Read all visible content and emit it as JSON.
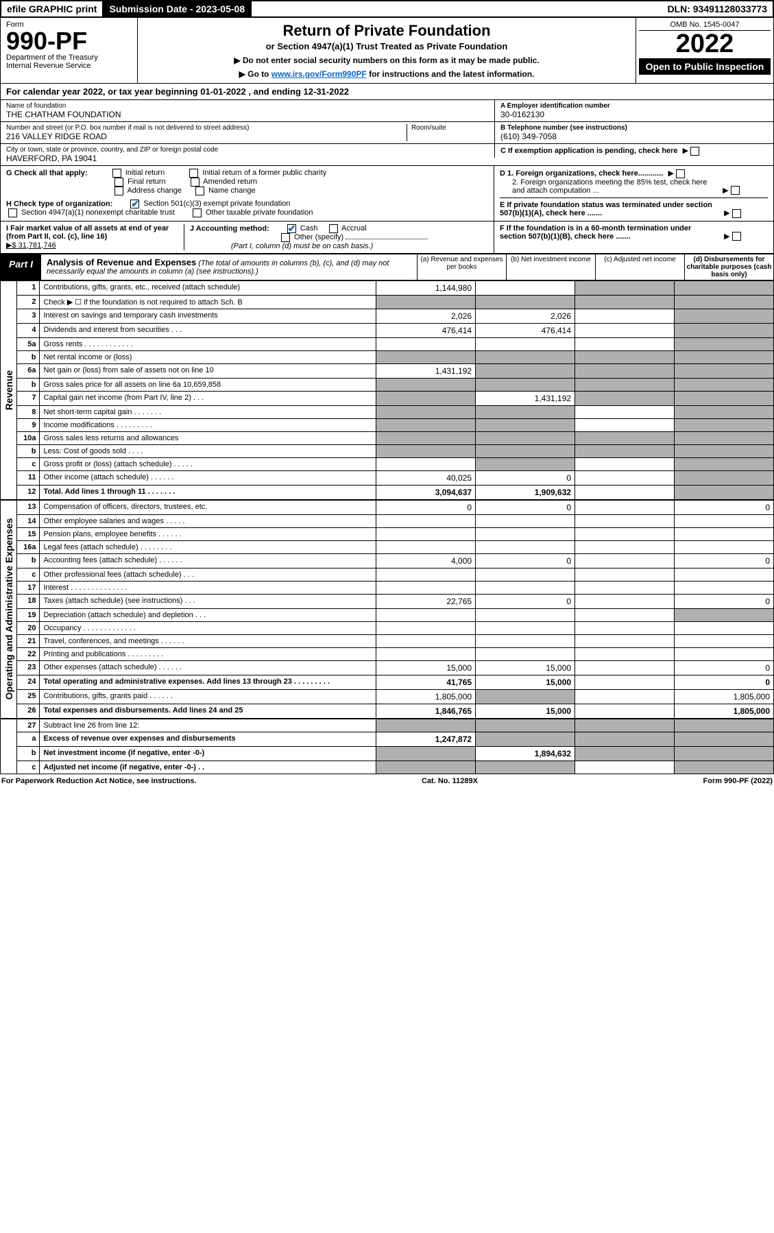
{
  "topbar": {
    "efile": "efile GRAPHIC print",
    "subdate": "Submission Date - 2023-05-08",
    "dln": "DLN: 93491128033773"
  },
  "header": {
    "form_word": "Form",
    "form_no": "990-PF",
    "dept": "Department of the Treasury",
    "irs": "Internal Revenue Service",
    "title": "Return of Private Foundation",
    "subtitle": "or Section 4947(a)(1) Trust Treated as Private Foundation",
    "note1": "▶ Do not enter social security numbers on this form as it may be made public.",
    "note2_pre": "▶ Go to ",
    "note2_link": "www.irs.gov/Form990PF",
    "note2_post": " for instructions and the latest information.",
    "omb": "OMB No. 1545-0047",
    "taxyear": "2022",
    "open": "Open to Public Inspection"
  },
  "calyear": {
    "pre": "For calendar year 2022, or tax year beginning ",
    "begin": "01-01-2022",
    "mid": " , and ending ",
    "end": "12-31-2022"
  },
  "info": {
    "name_lbl": "Name of foundation",
    "name": "THE CHATHAM FOUNDATION",
    "addr_lbl": "Number and street (or P.O. box number if mail is not delivered to street address)",
    "addr": "216 VALLEY RIDGE ROAD",
    "room_lbl": "Room/suite",
    "city_lbl": "City or town, state or province, country, and ZIP or foreign postal code",
    "city": "HAVERFORD, PA  19041",
    "ein_lbl": "A Employer identification number",
    "ein": "30-0162130",
    "tel_lbl": "B Telephone number (see instructions)",
    "tel": "(610) 349-7058",
    "c_lbl": "C If exemption application is pending, check here",
    "d1": "D 1. Foreign organizations, check here............",
    "d2": "2. Foreign organizations meeting the 85% test, check here and attach computation ...",
    "e_lbl": "E  If private foundation status was terminated under section 507(b)(1)(A), check here .......",
    "f_lbl": "F  If the foundation is in a 60-month termination under section 507(b)(1)(B), check here .......",
    "g_lbl": "G Check all that apply:",
    "g_opts": [
      "Initial return",
      "Initial return of a former public charity",
      "Final return",
      "Amended return",
      "Address change",
      "Name change"
    ],
    "h_lbl": "H Check type of organization:",
    "h_opt1": "Section 501(c)(3) exempt private foundation",
    "h_opt2": "Section 4947(a)(1) nonexempt charitable trust",
    "h_opt3": "Other taxable private foundation",
    "i_lbl": "I Fair market value of all assets at end of year (from Part II, col. (c), line 16)",
    "i_val": "▶$  31,781,746",
    "j_lbl": "J Accounting method:",
    "j_cash": "Cash",
    "j_accrual": "Accrual",
    "j_other": "Other (specify)",
    "j_note": "(Part I, column (d) must be on cash basis.)"
  },
  "part1": {
    "label": "Part I",
    "title": "Analysis of Revenue and Expenses",
    "desc": " (The total of amounts in columns (b), (c), and (d) may not necessarily equal the amounts in column (a) (see instructions).)",
    "cols": {
      "a": "(a)   Revenue and expenses per books",
      "b": "(b)  Net investment income",
      "c": "(c)  Adjusted net income",
      "d": "(d)  Disbursements for charitable purposes (cash basis only)"
    }
  },
  "side": {
    "rev": "Revenue",
    "exp": "Operating and Administrative Expenses"
  },
  "rows": [
    {
      "sec": "rev",
      "ln": "1",
      "desc": "Contributions, gifts, grants, etc., received (attach schedule)",
      "a": "1,144,980",
      "b": "",
      "c": "g",
      "d": "g"
    },
    {
      "sec": "rev",
      "ln": "2",
      "desc": "Check ▶ ☐ if the foundation is not required to attach Sch. B",
      "a": "g",
      "b": "g",
      "c": "g",
      "d": "g"
    },
    {
      "sec": "rev",
      "ln": "3",
      "desc": "Interest on savings and temporary cash investments",
      "a": "2,026",
      "b": "2,026",
      "c": "",
      "d": "g"
    },
    {
      "sec": "rev",
      "ln": "4",
      "desc": "Dividends and interest from securities  .  .  .",
      "a": "476,414",
      "b": "476,414",
      "c": "",
      "d": "g"
    },
    {
      "sec": "rev",
      "ln": "5a",
      "desc": "Gross rents  .  .  .  .  .  .  .  .  .  .  .  .",
      "a": "",
      "b": "",
      "c": "",
      "d": "g"
    },
    {
      "sec": "rev",
      "ln": "b",
      "desc": "Net rental income or (loss)  ",
      "a": "g",
      "b": "g",
      "c": "g",
      "d": "g"
    },
    {
      "sec": "rev",
      "ln": "6a",
      "desc": "Net gain or (loss) from sale of assets not on line 10",
      "a": "1,431,192",
      "b": "g",
      "c": "g",
      "d": "g"
    },
    {
      "sec": "rev",
      "ln": "b",
      "desc": "Gross sales price for all assets on line 6a         10,659,858",
      "a": "g",
      "b": "g",
      "c": "g",
      "d": "g"
    },
    {
      "sec": "rev",
      "ln": "7",
      "desc": "Capital gain net income (from Part IV, line 2)  .  .  .",
      "a": "g",
      "b": "1,431,192",
      "c": "g",
      "d": "g"
    },
    {
      "sec": "rev",
      "ln": "8",
      "desc": "Net short-term capital gain  .  .  .  .  .  .  .",
      "a": "g",
      "b": "g",
      "c": "",
      "d": "g"
    },
    {
      "sec": "rev",
      "ln": "9",
      "desc": "Income modifications .  .  .  .  .  .  .  .  .",
      "a": "g",
      "b": "g",
      "c": "",
      "d": "g"
    },
    {
      "sec": "rev",
      "ln": "10a",
      "desc": "Gross sales less returns and allowances",
      "a": "g",
      "b": "g",
      "c": "g",
      "d": "g"
    },
    {
      "sec": "rev",
      "ln": "b",
      "desc": "Less: Cost of goods sold  .  .  .  .",
      "a": "g",
      "b": "g",
      "c": "g",
      "d": "g"
    },
    {
      "sec": "rev",
      "ln": "c",
      "desc": "Gross profit or (loss) (attach schedule)  .  .  .  .  .",
      "a": "",
      "b": "g",
      "c": "",
      "d": "g"
    },
    {
      "sec": "rev",
      "ln": "11",
      "desc": "Other income (attach schedule)  .  .  .  .  .  .",
      "a": "40,025",
      "b": "0",
      "c": "",
      "d": "g"
    },
    {
      "sec": "rev",
      "ln": "12",
      "desc": "Total. Add lines 1 through 11  .  .  .  .  .  .  .",
      "a": "3,094,637",
      "b": "1,909,632",
      "c": "",
      "d": "g",
      "bold": true
    },
    {
      "sec": "exp",
      "ln": "13",
      "desc": "Compensation of officers, directors, trustees, etc.",
      "a": "0",
      "b": "0",
      "c": "",
      "d": "0"
    },
    {
      "sec": "exp",
      "ln": "14",
      "desc": "Other employee salaries and wages  .  .  .  .  .",
      "a": "",
      "b": "",
      "c": "",
      "d": ""
    },
    {
      "sec": "exp",
      "ln": "15",
      "desc": "Pension plans, employee benefits  .  .  .  .  .  .",
      "a": "",
      "b": "",
      "c": "",
      "d": ""
    },
    {
      "sec": "exp",
      "ln": "16a",
      "desc": "Legal fees (attach schedule) .  .  .  .  .  .  .  .",
      "a": "",
      "b": "",
      "c": "",
      "d": ""
    },
    {
      "sec": "exp",
      "ln": "b",
      "desc": "Accounting fees (attach schedule) .  .  .  .  .  .",
      "a": "4,000",
      "b": "0",
      "c": "",
      "d": "0"
    },
    {
      "sec": "exp",
      "ln": "c",
      "desc": "Other professional fees (attach schedule)  .  .  .",
      "a": "",
      "b": "",
      "c": "",
      "d": ""
    },
    {
      "sec": "exp",
      "ln": "17",
      "desc": "Interest .  .  .  .  .  .  .  .  .  .  .  .  .  .",
      "a": "",
      "b": "",
      "c": "",
      "d": ""
    },
    {
      "sec": "exp",
      "ln": "18",
      "desc": "Taxes (attach schedule) (see instructions)  .  .  .",
      "a": "22,765",
      "b": "0",
      "c": "",
      "d": "0"
    },
    {
      "sec": "exp",
      "ln": "19",
      "desc": "Depreciation (attach schedule) and depletion  .  .  .",
      "a": "",
      "b": "",
      "c": "",
      "d": "g"
    },
    {
      "sec": "exp",
      "ln": "20",
      "desc": "Occupancy .  .  .  .  .  .  .  .  .  .  .  .  .",
      "a": "",
      "b": "",
      "c": "",
      "d": ""
    },
    {
      "sec": "exp",
      "ln": "21",
      "desc": "Travel, conferences, and meetings .  .  .  .  .  .",
      "a": "",
      "b": "",
      "c": "",
      "d": ""
    },
    {
      "sec": "exp",
      "ln": "22",
      "desc": "Printing and publications .  .  .  .  .  .  .  .  .",
      "a": "",
      "b": "",
      "c": "",
      "d": ""
    },
    {
      "sec": "exp",
      "ln": "23",
      "desc": "Other expenses (attach schedule) .  .  .  .  .  .",
      "a": "15,000",
      "b": "15,000",
      "c": "",
      "d": "0"
    },
    {
      "sec": "exp",
      "ln": "24",
      "desc": "Total operating and administrative expenses. Add lines 13 through 23  .  .  .  .  .  .  .  .  .",
      "a": "41,765",
      "b": "15,000",
      "c": "",
      "d": "0",
      "bold": true
    },
    {
      "sec": "exp",
      "ln": "25",
      "desc": "Contributions, gifts, grants paid  .  .  .  .  .  .",
      "a": "1,805,000",
      "b": "g",
      "c": "",
      "d": "1,805,000"
    },
    {
      "sec": "exp",
      "ln": "26",
      "desc": "Total expenses and disbursements. Add lines 24 and 25",
      "a": "1,846,765",
      "b": "15,000",
      "c": "",
      "d": "1,805,000",
      "bold": true
    },
    {
      "sec": "",
      "ln": "27",
      "desc": "Subtract line 26 from line 12:",
      "a": "g",
      "b": "g",
      "c": "g",
      "d": "g"
    },
    {
      "sec": "",
      "ln": "a",
      "desc": "Excess of revenue over expenses and disbursements",
      "a": "1,247,872",
      "b": "g",
      "c": "g",
      "d": "g",
      "bold": true
    },
    {
      "sec": "",
      "ln": "b",
      "desc": "Net investment income (if negative, enter -0-)",
      "a": "g",
      "b": "1,894,632",
      "c": "g",
      "d": "g",
      "bold": true
    },
    {
      "sec": "",
      "ln": "c",
      "desc": "Adjusted net income (if negative, enter -0-)  .  .",
      "a": "g",
      "b": "g",
      "c": "",
      "d": "g",
      "bold": true
    }
  ],
  "footer": {
    "left": "For Paperwork Reduction Act Notice, see instructions.",
    "mid": "Cat. No. 11289X",
    "right": "Form 990-PF (2022)"
  }
}
